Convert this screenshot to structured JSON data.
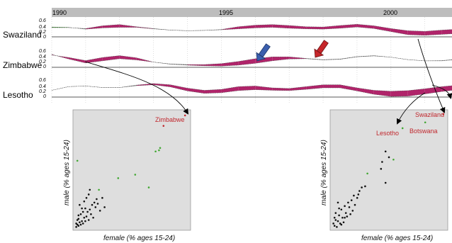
{
  "chart_data": [
    {
      "type": "area",
      "description_free": true,
      "x_ticks": [
        "1990",
        "1995",
        "2000"
      ],
      "xlim": [
        1990,
        2001.8
      ],
      "ylim": [
        0,
        0.6
      ],
      "y_ticks": [
        "0.6",
        "0.4",
        "0.2",
        "0"
      ],
      "series": [
        {
          "name": "Swaziland",
          "x": [
            1990,
            1990.5,
            1991,
            1991.5,
            1992,
            1992.5,
            1993,
            1993.5,
            1994,
            1994.5,
            1995,
            1995.5,
            1996,
            1996.5,
            1997,
            1997.5,
            1998,
            1998.5,
            1999,
            1999.5,
            2000,
            2000.5,
            2001,
            2001.5,
            2001.8
          ],
          "female": [
            0.3,
            0.3,
            0.27,
            0.36,
            0.4,
            0.33,
            0.27,
            0.22,
            0.2,
            0.21,
            0.24,
            0.33,
            0.38,
            0.4,
            0.37,
            0.33,
            0.32,
            0.37,
            0.41,
            0.36,
            0.27,
            0.2,
            0.18,
            0.22,
            0.24
          ],
          "male": [
            0.32,
            0.31,
            0.25,
            0.29,
            0.31,
            0.31,
            0.26,
            0.22,
            0.2,
            0.21,
            0.23,
            0.26,
            0.29,
            0.31,
            0.28,
            0.26,
            0.25,
            0.28,
            0.32,
            0.27,
            0.17,
            0.07,
            0.05,
            0.08,
            0.1
          ]
        },
        {
          "name": "Zimbabwe",
          "x": [
            1990,
            1990.5,
            1991,
            1991.5,
            1992,
            1992.5,
            1993,
            1993.5,
            1994,
            1994.5,
            1995,
            1995.5,
            1996,
            1996.5,
            1997,
            1997.5,
            1998,
            1998.5,
            1999,
            1999.5,
            2000,
            2000.5,
            2001,
            2001.5,
            2001.8
          ],
          "female": [
            0.4,
            0.32,
            0.22,
            0.32,
            0.38,
            0.31,
            0.17,
            0.11,
            0.09,
            0.09,
            0.12,
            0.19,
            0.28,
            0.34,
            0.34,
            0.29,
            0.25,
            0.27,
            0.35,
            0.38,
            0.33,
            0.25,
            0.21,
            0.22,
            0.25
          ],
          "male": [
            0.42,
            0.27,
            0.14,
            0.21,
            0.28,
            0.24,
            0.17,
            0.1,
            0.07,
            0.05,
            0.04,
            0.07,
            0.13,
            0.21,
            0.27,
            0.28,
            0.24,
            0.26,
            0.34,
            0.37,
            0.33,
            0.25,
            0.21,
            0.21,
            0.24
          ]
        },
        {
          "name": "Lesotho",
          "x": [
            1990,
            1990.5,
            1991,
            1991.5,
            1992,
            1992.5,
            1993,
            1993.5,
            1994,
            1994.5,
            1995,
            1995.5,
            1996,
            1996.5,
            1997,
            1997.5,
            1998,
            1998.5,
            1999,
            1999.5,
            2000,
            2000.5,
            2001,
            2001.5,
            2001.8
          ],
          "female": [
            0.22,
            0.34,
            0.36,
            0.31,
            0.31,
            0.39,
            0.44,
            0.4,
            0.29,
            0.22,
            0.25,
            0.34,
            0.36,
            0.3,
            0.28,
            0.34,
            0.4,
            0.4,
            0.3,
            0.22,
            0.19,
            0.21,
            0.27,
            0.34,
            0.37
          ],
          "male": [
            0.22,
            0.34,
            0.36,
            0.31,
            0.31,
            0.37,
            0.4,
            0.33,
            0.2,
            0.12,
            0.14,
            0.21,
            0.24,
            0.22,
            0.21,
            0.25,
            0.3,
            0.3,
            0.2,
            0.09,
            0.02,
            0.03,
            0.1,
            0.18,
            0.22
          ]
        }
      ],
      "colors": {
        "female_higher": "#b0246a",
        "male_higher": "#43a834",
        "equal_line": "#555555",
        "header_band": "#bdbdbd"
      },
      "arrow_colors": [
        "#3b5fae",
        "#c6262a"
      ]
    },
    {
      "type": "scatter",
      "xlabel": "female (% ages 15-24)",
      "ylabel": "male (% ages 15-24)",
      "xlim": [
        0,
        1
      ],
      "ylim": [
        0,
        1
      ],
      "grid": false,
      "annotations": [
        {
          "text": "Zimbabwe",
          "x": 0.97,
          "y": 0.97,
          "color": "#c0272d"
        }
      ],
      "series": [
        {
          "color": "#c0272d",
          "points": [
            [
              0.97,
              0.97
            ],
            [
              0.78,
              0.88
            ]
          ]
        },
        {
          "color": "#43a834",
          "points": [
            [
              0.02,
              0.58
            ],
            [
              0.38,
              0.43
            ],
            [
              0.53,
              0.46
            ],
            [
              0.71,
              0.66
            ],
            [
              0.65,
              0.35
            ],
            [
              0.75,
              0.69
            ],
            [
              0.21,
              0.33
            ],
            [
              0.74,
              0.67
            ]
          ]
        },
        {
          "color": "#111111",
          "points": [
            [
              0.01,
              0.01
            ],
            [
              0.02,
              0.03
            ],
            [
              0.03,
              0.02
            ],
            [
              0.04,
              0.05
            ],
            [
              0.05,
              0.03
            ],
            [
              0.06,
              0.06
            ],
            [
              0.03,
              0.08
            ],
            [
              0.07,
              0.04
            ],
            [
              0.08,
              0.09
            ],
            [
              0.05,
              0.12
            ],
            [
              0.09,
              0.06
            ],
            [
              0.1,
              0.1
            ],
            [
              0.11,
              0.14
            ],
            [
              0.06,
              0.17
            ],
            [
              0.12,
              0.07
            ],
            [
              0.13,
              0.16
            ],
            [
              0.14,
              0.12
            ],
            [
              0.04,
              0.2
            ],
            [
              0.15,
              0.2
            ],
            [
              0.16,
              0.09
            ],
            [
              0.08,
              0.23
            ],
            [
              0.1,
              0.26
            ],
            [
              0.18,
              0.18
            ],
            [
              0.19,
              0.25
            ],
            [
              0.12,
              0.29
            ],
            [
              0.2,
              0.21
            ],
            [
              0.22,
              0.15
            ],
            [
              0.13,
              0.33
            ],
            [
              0.02,
              0.07
            ],
            [
              0.01,
              0.04
            ],
            [
              0.24,
              0.26
            ],
            [
              0.07,
              0.14
            ],
            [
              0.17,
              0.22
            ],
            [
              0.03,
              0.11
            ],
            [
              0.26,
              0.18
            ],
            [
              0.09,
              0.17
            ]
          ]
        }
      ]
    },
    {
      "type": "scatter",
      "xlabel": "female (% ages 15-24)",
      "ylabel": "male (% ages 15-24)",
      "xlim": [
        0,
        1
      ],
      "ylim": [
        0,
        1
      ],
      "grid": false,
      "annotations": [
        {
          "text": "Swaziland",
          "x": 0.98,
          "y": 0.98,
          "color": "#c0272d"
        },
        {
          "text": "Botswana",
          "x": 0.82,
          "y": 0.91,
          "color": "#c0272d"
        },
        {
          "text": "Lesotho",
          "x": 0.62,
          "y": 0.86,
          "color": "#c0272d"
        }
      ],
      "series": [
        {
          "color": "#c0272d",
          "points": [
            [
              0.98,
              0.98
            ]
          ]
        },
        {
          "color": "#43a834",
          "points": [
            [
              0.82,
              0.91
            ],
            [
              0.62,
              0.86
            ],
            [
              0.54,
              0.59
            ],
            [
              0.31,
              0.47
            ]
          ]
        },
        {
          "color": "#111111",
          "points": [
            [
              0.5,
              0.61
            ],
            [
              0.44,
              0.57
            ],
            [
              0.47,
              0.66
            ],
            [
              0.43,
              0.51
            ],
            [
              0.47,
              0.39
            ],
            [
              0.26,
              0.35
            ],
            [
              0.29,
              0.36
            ],
            [
              0.23,
              0.29
            ],
            [
              0.24,
              0.32
            ],
            [
              0.19,
              0.28
            ],
            [
              0.22,
              0.26
            ],
            [
              0.15,
              0.18
            ],
            [
              0.17,
              0.24
            ],
            [
              0.11,
              0.19
            ],
            [
              0.12,
              0.13
            ],
            [
              0.08,
              0.16
            ],
            [
              0.09,
              0.09
            ],
            [
              0.13,
              0.1
            ],
            [
              0.06,
              0.11
            ],
            [
              0.05,
              0.06
            ],
            [
              0.03,
              0.07
            ],
            [
              0.02,
              0.02
            ],
            [
              0.01,
              0.04
            ],
            [
              0.04,
              0.01
            ],
            [
              0.07,
              0.04
            ],
            [
              0.1,
              0.05
            ],
            [
              0.03,
              0.13
            ],
            [
              0.06,
              0.17
            ],
            [
              0.14,
              0.22
            ],
            [
              0.16,
              0.12
            ],
            [
              0.2,
              0.2
            ],
            [
              0.02,
              0.09
            ],
            [
              0.08,
              0.03
            ],
            [
              0.11,
              0.09
            ],
            [
              0.18,
              0.15
            ],
            [
              0.05,
              0.22
            ]
          ]
        }
      ]
    }
  ]
}
